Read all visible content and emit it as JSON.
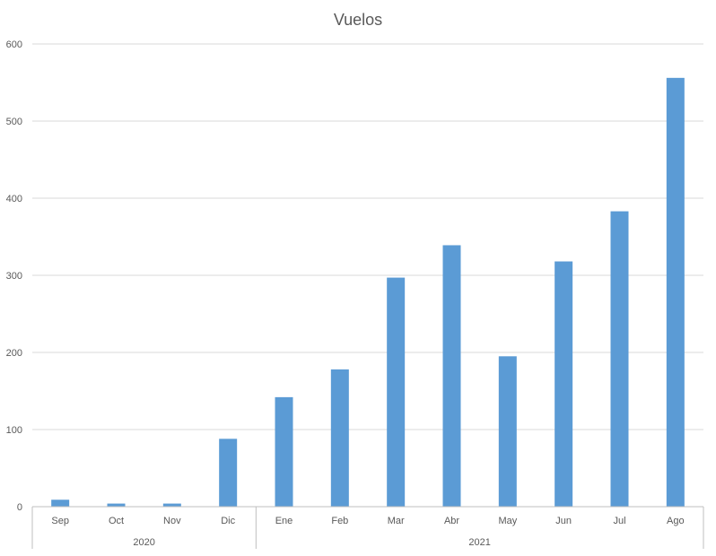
{
  "chart_data": {
    "type": "bar",
    "title": "Vuelos",
    "xlabel": "",
    "ylabel": "",
    "ylim": [
      0,
      600
    ],
    "yticks": [
      0,
      100,
      200,
      300,
      400,
      500,
      600
    ],
    "grid": true,
    "legend": "none",
    "bar_color": "#5b9bd5",
    "categories": [
      "Sep",
      "Oct",
      "Nov",
      "Dic",
      "Ene",
      "Feb",
      "Mar",
      "Abr",
      "May",
      "Jun",
      "Jul",
      "Ago"
    ],
    "values": [
      9,
      4,
      4,
      88,
      142,
      178,
      297,
      339,
      195,
      318,
      383,
      556
    ],
    "groups": [
      {
        "label": "2020",
        "count": 4
      },
      {
        "label": "2021",
        "count": 8
      }
    ]
  }
}
